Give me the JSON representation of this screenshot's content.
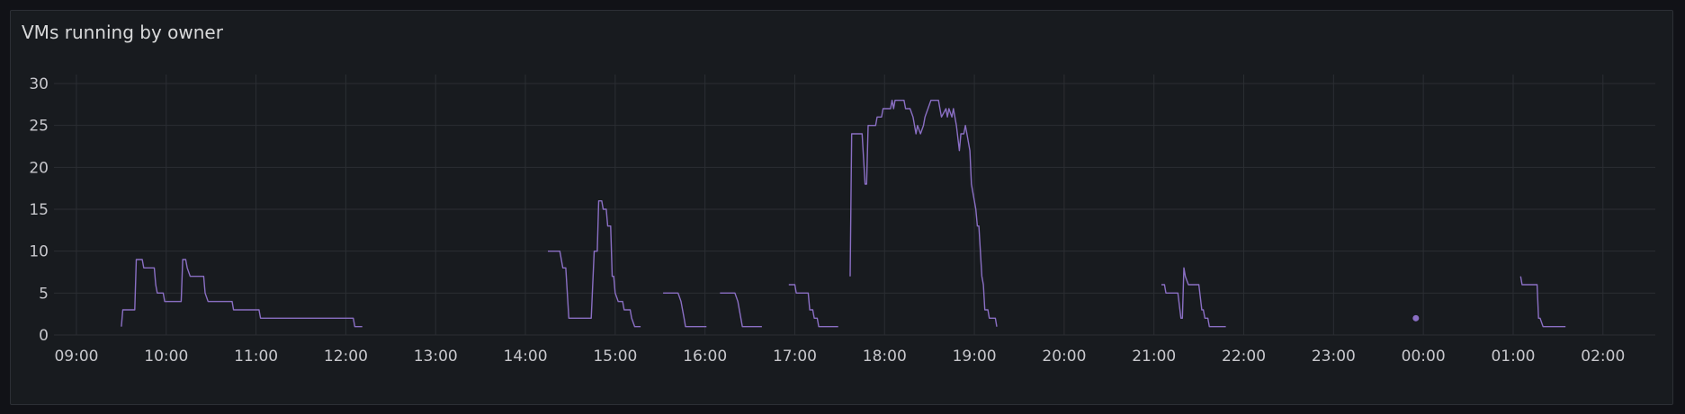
{
  "panel": {
    "title": "VMs running by owner"
  },
  "colors": {
    "series": "#8a6fc4",
    "grid": "#2b2e33",
    "text": "#c7c7cc",
    "panel_bg": "#181b1f"
  },
  "chart_data": {
    "type": "line",
    "title": "VMs running by owner",
    "xlabel": "",
    "ylabel": "",
    "ylim": [
      0,
      30
    ],
    "xlim": [
      "08:45",
      "02:35"
    ],
    "yticks": [
      0,
      5,
      10,
      15,
      20,
      25,
      30
    ],
    "xticks": [
      "09:00",
      "10:00",
      "11:00",
      "12:00",
      "13:00",
      "14:00",
      "15:00",
      "16:00",
      "17:00",
      "18:00",
      "19:00",
      "20:00",
      "21:00",
      "22:00",
      "23:00",
      "00:00",
      "01:00",
      "02:00"
    ],
    "grid": true,
    "legend": "none",
    "series": [
      {
        "segments": [
          [
            [
              "09:30",
              1
            ],
            [
              "09:31",
              3
            ],
            [
              "09:39",
              3
            ],
            [
              "09:40",
              9
            ],
            [
              "09:44",
              9
            ],
            [
              "09:45",
              8
            ],
            [
              "09:52",
              8
            ],
            [
              "09:53",
              6
            ],
            [
              "09:54",
              5
            ],
            [
              "09:58",
              5
            ],
            [
              "09:59",
              4
            ],
            [
              "10:10",
              4
            ],
            [
              "10:11",
              9
            ],
            [
              "10:13",
              9
            ],
            [
              "10:14",
              8
            ],
            [
              "10:16",
              7
            ],
            [
              "10:25",
              7
            ],
            [
              "10:26",
              5
            ],
            [
              "10:28",
              4
            ],
            [
              "10:44",
              4
            ],
            [
              "10:45",
              3
            ],
            [
              "11:02",
              3
            ],
            [
              "11:03",
              2
            ],
            [
              "12:05",
              2
            ],
            [
              "12:06",
              1
            ],
            [
              "12:11",
              1
            ]
          ],
          [
            [
              "14:15",
              10
            ],
            [
              "14:23",
              10
            ],
            [
              "14:25",
              8
            ],
            [
              "14:27",
              8
            ],
            [
              "14:29",
              2
            ],
            [
              "14:44",
              2
            ],
            [
              "14:46",
              10
            ],
            [
              "14:48",
              10
            ],
            [
              "14:49",
              16
            ],
            [
              "14:51",
              16
            ],
            [
              "14:52",
              15
            ],
            [
              "14:54",
              15
            ],
            [
              "14:55",
              13
            ],
            [
              "14:57",
              13
            ],
            [
              "14:58",
              7
            ],
            [
              "14:59",
              7
            ],
            [
              "15:00",
              5
            ],
            [
              "15:02",
              4
            ],
            [
              "15:05",
              4
            ],
            [
              "15:06",
              3
            ],
            [
              "15:10",
              3
            ],
            [
              "15:11",
              2
            ],
            [
              "15:13",
              1
            ],
            [
              "15:17",
              1
            ]
          ],
          [
            [
              "15:32",
              5
            ],
            [
              "15:42",
              5
            ],
            [
              "15:44",
              4
            ],
            [
              "15:46",
              2
            ],
            [
              "15:47",
              1
            ],
            [
              "16:01",
              1
            ]
          ],
          [
            [
              "16:10",
              5
            ],
            [
              "16:20",
              5
            ],
            [
              "16:22",
              4
            ],
            [
              "16:25",
              1
            ],
            [
              "16:38",
              1
            ]
          ],
          [
            [
              "16:56",
              6
            ],
            [
              "17:00",
              6
            ],
            [
              "17:01",
              5
            ],
            [
              "17:09",
              5
            ],
            [
              "17:10",
              3
            ],
            [
              "17:12",
              3
            ],
            [
              "17:13",
              2
            ],
            [
              "17:15",
              2
            ],
            [
              "17:16",
              1
            ],
            [
              "17:29",
              1
            ]
          ],
          [
            [
              "17:37",
              7
            ],
            [
              "17:38",
              24
            ],
            [
              "17:45",
              24
            ],
            [
              "17:47",
              18
            ],
            [
              "17:48",
              18
            ],
            [
              "17:49",
              25
            ],
            [
              "17:54",
              25
            ],
            [
              "17:55",
              26
            ],
            [
              "17:58",
              26
            ],
            [
              "17:59",
              27
            ],
            [
              "18:04",
              27
            ],
            [
              "18:05",
              28
            ],
            [
              "18:06",
              27
            ],
            [
              "18:07",
              28
            ],
            [
              "18:13",
              28
            ],
            [
              "18:14",
              27
            ],
            [
              "18:17",
              27
            ],
            [
              "18:19",
              26
            ],
            [
              "18:21",
              24
            ],
            [
              "18:22",
              25
            ],
            [
              "18:24",
              24
            ],
            [
              "18:26",
              25
            ],
            [
              "18:27",
              26
            ],
            [
              "18:29",
              27
            ],
            [
              "18:31",
              28
            ],
            [
              "18:36",
              28
            ],
            [
              "18:37",
              27
            ],
            [
              "18:38",
              26
            ],
            [
              "18:41",
              27
            ],
            [
              "18:42",
              26
            ],
            [
              "18:43",
              27
            ],
            [
              "18:45",
              26
            ],
            [
              "18:46",
              27
            ],
            [
              "18:48",
              25
            ],
            [
              "18:50",
              22
            ],
            [
              "18:51",
              24
            ],
            [
              "18:53",
              24
            ],
            [
              "18:54",
              25
            ],
            [
              "18:55",
              24
            ],
            [
              "18:57",
              22
            ],
            [
              "18:58",
              18
            ],
            [
              "18:59",
              17
            ],
            [
              "19:00",
              16
            ],
            [
              "19:01",
              15
            ],
            [
              "19:02",
              13
            ],
            [
              "19:03",
              13
            ],
            [
              "19:05",
              7
            ],
            [
              "19:06",
              6
            ],
            [
              "19:07",
              3
            ],
            [
              "19:09",
              3
            ],
            [
              "19:10",
              2
            ],
            [
              "19:14",
              2
            ],
            [
              "19:15",
              1
            ]
          ],
          [
            [
              "21:05",
              6
            ],
            [
              "21:07",
              6
            ],
            [
              "21:08",
              5
            ],
            [
              "21:16",
              5
            ],
            [
              "21:18",
              2
            ],
            [
              "21:19",
              2
            ],
            [
              "21:20",
              8
            ],
            [
              "21:21",
              7
            ],
            [
              "21:23",
              6
            ],
            [
              "21:30",
              6
            ],
            [
              "21:32",
              3
            ],
            [
              "21:33",
              3
            ],
            [
              "21:34",
              2
            ],
            [
              "21:36",
              2
            ],
            [
              "21:37",
              1
            ],
            [
              "21:48",
              1
            ]
          ],
          [
            [
              "23:55",
              2
            ]
          ],
          [
            [
              "01:05",
              7
            ],
            [
              "01:06",
              6
            ],
            [
              "01:16",
              6
            ],
            [
              "01:17",
              2
            ],
            [
              "01:18",
              2
            ],
            [
              "01:20",
              1
            ],
            [
              "01:35",
              1
            ]
          ]
        ]
      }
    ]
  }
}
